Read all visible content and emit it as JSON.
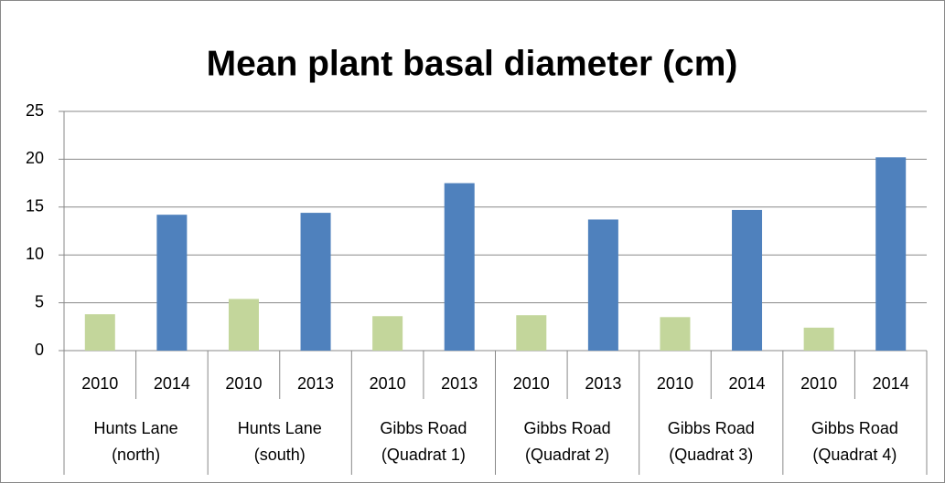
{
  "chart_data": {
    "type": "bar",
    "title": "Mean plant basal diameter (cm)",
    "categories": [
      "2010",
      "2014",
      "2010",
      "2013",
      "2010",
      "2013",
      "2010",
      "2013",
      "2010",
      "2014",
      "2010",
      "2014"
    ],
    "groups": [
      "Hunts Lane (north)",
      "Hunts Lane (south)",
      "Gibbs Road (Quadrat 1)",
      "Gibbs Road (Quadrat 2)",
      "Gibbs Road (Quadrat 3)",
      "Gibbs Road (Quadrat 4)"
    ],
    "values": [
      3.8,
      14.2,
      5.4,
      14.4,
      3.6,
      17.5,
      3.7,
      13.7,
      3.5,
      14.7,
      2.4,
      20.2
    ],
    "colors": [
      "#c3d69b",
      "#4f81bd",
      "#c3d69b",
      "#4f81bd",
      "#c3d69b",
      "#4f81bd",
      "#c3d69b",
      "#4f81bd",
      "#c3d69b",
      "#4f81bd",
      "#c3d69b",
      "#4f81bd"
    ],
    "ylim": [
      0,
      25
    ],
    "yticks": [
      0,
      5,
      10,
      15,
      20,
      25
    ],
    "grid": true
  }
}
